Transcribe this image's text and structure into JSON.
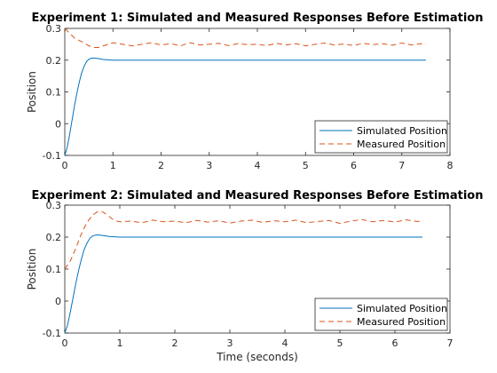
{
  "chart_data": [
    {
      "type": "line",
      "title": "Experiment 1: Simulated and Measured Responses Before Estimation",
      "xlabel": "",
      "ylabel": "Position",
      "xlim": [
        0,
        8
      ],
      "ylim": [
        -0.1,
        0.3
      ],
      "xticks": [
        "0",
        "1",
        "2",
        "3",
        "4",
        "5",
        "6",
        "7",
        "8"
      ],
      "yticks": [
        "-0.1",
        "0",
        "0.1",
        "0.2",
        "0.3"
      ],
      "grid": false,
      "legend_position": "bottom-right",
      "series": [
        {
          "name": "Simulated Position",
          "color": "#0072BD",
          "style": "solid",
          "x": [
            0,
            0.05,
            0.1,
            0.15,
            0.2,
            0.25,
            0.3,
            0.35,
            0.4,
            0.45,
            0.5,
            0.55,
            0.6,
            0.7,
            0.8,
            0.9,
            1.0,
            1.5,
            2,
            3,
            4,
            5,
            6,
            7,
            7.5
          ],
          "y": [
            -0.1,
            -0.075,
            -0.035,
            0.01,
            0.055,
            0.095,
            0.13,
            0.16,
            0.18,
            0.195,
            0.203,
            0.206,
            0.207,
            0.205,
            0.202,
            0.201,
            0.2,
            0.2,
            0.2,
            0.2,
            0.2,
            0.2,
            0.2,
            0.2,
            0.2
          ]
        },
        {
          "name": "Measured Position",
          "color": "#D95319",
          "style": "dashed",
          "x": [
            0,
            0.1,
            0.2,
            0.3,
            0.4,
            0.5,
            0.6,
            0.7,
            0.8,
            0.9,
            1.0,
            1.2,
            1.4,
            1.6,
            1.8,
            2.0,
            2.2,
            2.4,
            2.6,
            2.8,
            3.0,
            3.2,
            3.4,
            3.6,
            3.8,
            4.0,
            4.2,
            4.4,
            4.6,
            4.8,
            5.0,
            5.2,
            5.4,
            5.6,
            5.8,
            6.0,
            6.2,
            6.4,
            6.6,
            6.8,
            7.0,
            7.2,
            7.4,
            7.5
          ],
          "y": [
            0.3,
            0.285,
            0.27,
            0.262,
            0.255,
            0.245,
            0.24,
            0.24,
            0.245,
            0.25,
            0.255,
            0.25,
            0.245,
            0.25,
            0.255,
            0.248,
            0.252,
            0.245,
            0.255,
            0.248,
            0.25,
            0.253,
            0.246,
            0.252,
            0.249,
            0.25,
            0.246,
            0.253,
            0.248,
            0.252,
            0.245,
            0.25,
            0.254,
            0.248,
            0.251,
            0.246,
            0.253,
            0.249,
            0.252,
            0.247,
            0.254,
            0.248,
            0.252,
            0.25
          ]
        }
      ]
    },
    {
      "type": "line",
      "title": "Experiment 2: Simulated and Measured Responses Before Estimation",
      "xlabel": "Time (seconds)",
      "ylabel": "Position",
      "xlim": [
        0,
        7
      ],
      "ylim": [
        -0.1,
        0.3
      ],
      "xticks": [
        "0",
        "1",
        "2",
        "3",
        "4",
        "5",
        "6",
        "7"
      ],
      "yticks": [
        "-0.1",
        "0",
        "0.1",
        "0.2",
        "0.3"
      ],
      "grid": false,
      "legend_position": "bottom-right",
      "series": [
        {
          "name": "Simulated Position",
          "color": "#0072BD",
          "style": "solid",
          "x": [
            0,
            0.05,
            0.1,
            0.15,
            0.2,
            0.25,
            0.3,
            0.35,
            0.4,
            0.45,
            0.5,
            0.55,
            0.6,
            0.7,
            0.8,
            0.9,
            1.0,
            1.5,
            2,
            3,
            4,
            5,
            6,
            6.5
          ],
          "y": [
            -0.1,
            -0.075,
            -0.035,
            0.01,
            0.055,
            0.095,
            0.13,
            0.16,
            0.18,
            0.195,
            0.203,
            0.206,
            0.207,
            0.205,
            0.202,
            0.201,
            0.2,
            0.2,
            0.2,
            0.2,
            0.2,
            0.2,
            0.2,
            0.2
          ]
        },
        {
          "name": "Measured Position",
          "color": "#D95319",
          "style": "dashed",
          "x": [
            0,
            0.1,
            0.2,
            0.3,
            0.4,
            0.5,
            0.6,
            0.7,
            0.8,
            0.9,
            1.0,
            1.2,
            1.4,
            1.6,
            1.8,
            2.0,
            2.2,
            2.4,
            2.6,
            2.8,
            3.0,
            3.2,
            3.4,
            3.6,
            3.8,
            4.0,
            4.2,
            4.4,
            4.6,
            4.8,
            5.0,
            5.2,
            5.4,
            5.6,
            5.8,
            6.0,
            6.2,
            6.4,
            6.5
          ],
          "y": [
            0.1,
            0.125,
            0.165,
            0.21,
            0.245,
            0.268,
            0.28,
            0.278,
            0.265,
            0.252,
            0.248,
            0.25,
            0.245,
            0.253,
            0.248,
            0.25,
            0.245,
            0.252,
            0.247,
            0.251,
            0.244,
            0.25,
            0.253,
            0.246,
            0.251,
            0.248,
            0.253,
            0.245,
            0.249,
            0.252,
            0.243,
            0.25,
            0.255,
            0.248,
            0.252,
            0.247,
            0.254,
            0.249,
            0.25
          ]
        }
      ]
    }
  ]
}
